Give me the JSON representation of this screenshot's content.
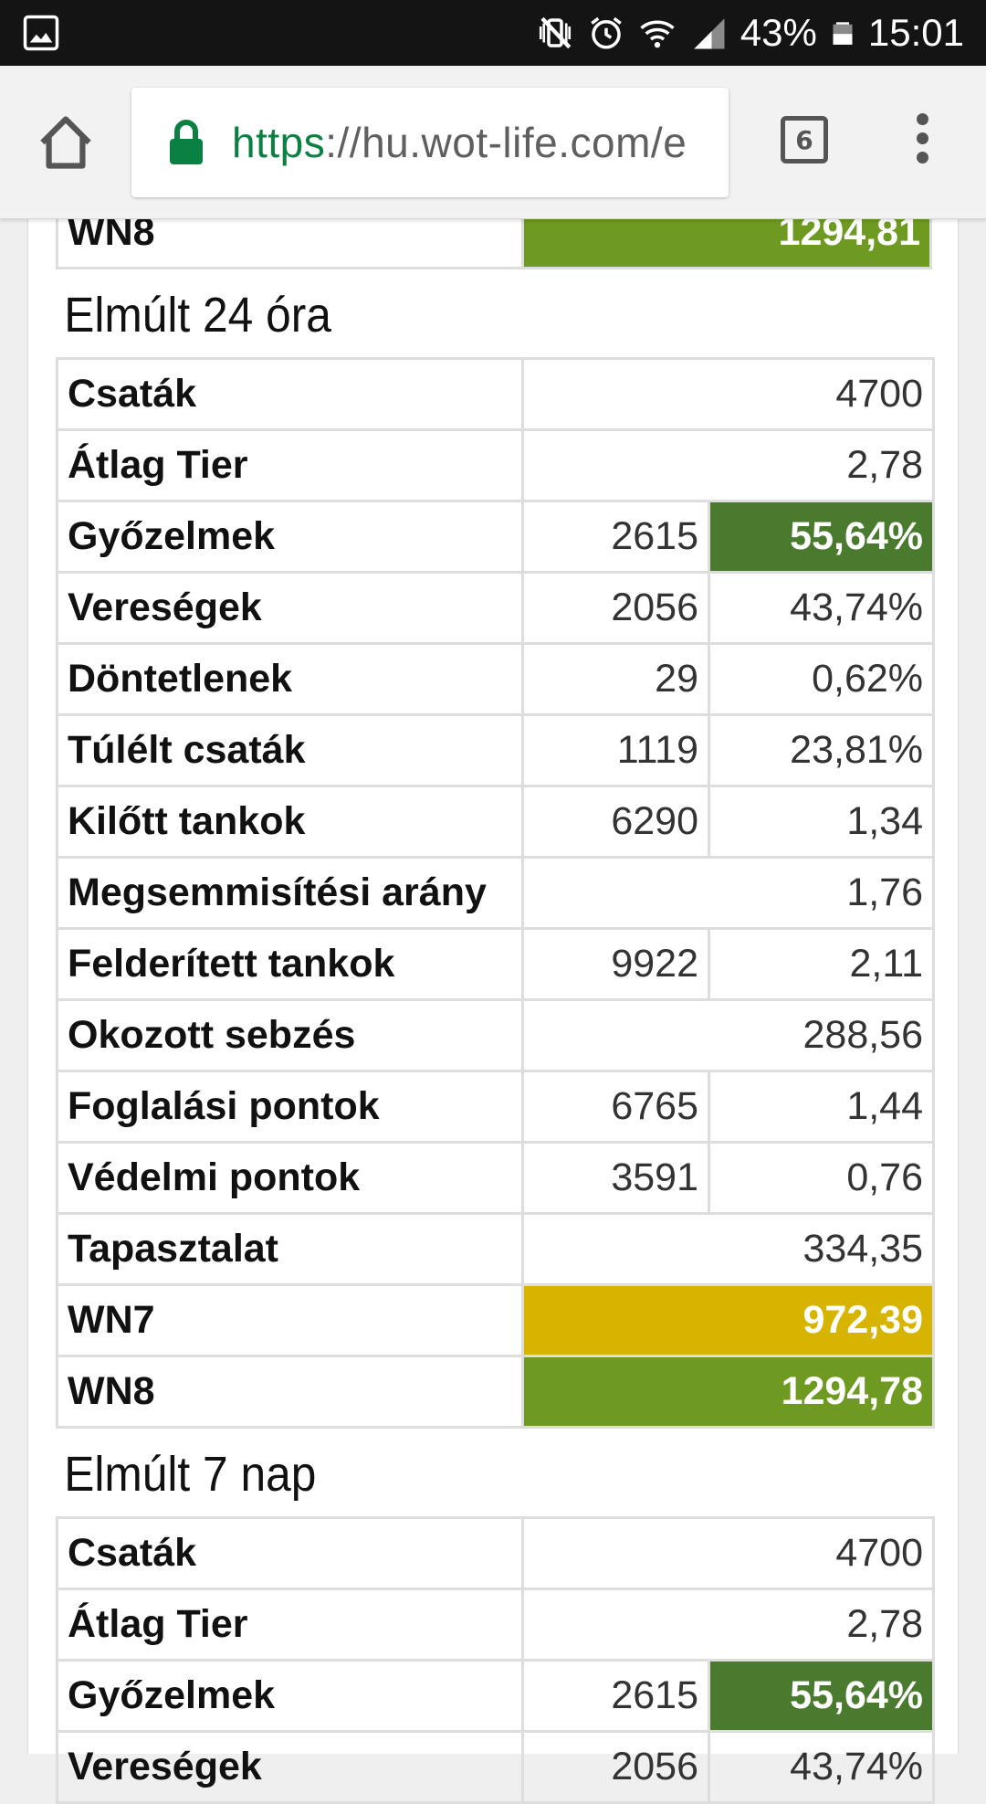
{
  "status_bar": {
    "battery": "43%",
    "time": "15:01",
    "icons": [
      "image-icon",
      "mute-vibrate-icon",
      "alarm-icon",
      "wifi-icon",
      "signal-icon",
      "battery-icon"
    ]
  },
  "browser": {
    "url_scheme": "https",
    "url_rest": "://hu.wot-life.com/e",
    "tab_count": "6"
  },
  "top_row": {
    "label": "WN8",
    "value": "1294,81"
  },
  "section_24h": {
    "title": "Elmúlt 24 óra",
    "rows": {
      "battles": {
        "label": "Csaták",
        "value": "4700"
      },
      "avg_tier": {
        "label": "Átlag Tier",
        "value": "2,78"
      },
      "wins": {
        "label": "Győzelmek",
        "count": "2615",
        "value": "55,64%"
      },
      "losses": {
        "label": "Vereségek",
        "count": "2056",
        "value": "43,74%"
      },
      "draws": {
        "label": "Döntetlenek",
        "count": "29",
        "value": "0,62%"
      },
      "survived": {
        "label": "Túlélt csaták",
        "count": "1119",
        "value": "23,81%"
      },
      "kills": {
        "label": "Kilőtt tankok",
        "count": "6290",
        "value": "1,34"
      },
      "kd_ratio": {
        "label": "Megsemmisítési arány",
        "value": "1,76"
      },
      "spotted": {
        "label": "Felderített tankok",
        "count": "9922",
        "value": "2,11"
      },
      "damage": {
        "label": "Okozott sebzés",
        "value": "288,56"
      },
      "capture": {
        "label": "Foglalási pontok",
        "count": "6765",
        "value": "1,44"
      },
      "defense": {
        "label": "Védelmi pontok",
        "count": "3591",
        "value": "0,76"
      },
      "xp": {
        "label": "Tapasztalat",
        "value": "334,35"
      },
      "wn7": {
        "label": "WN7",
        "value": "972,39"
      },
      "wn8": {
        "label": "WN8",
        "value": "1294,78"
      }
    }
  },
  "section_7d": {
    "title": "Elmúlt 7 nap",
    "rows": {
      "battles": {
        "label": "Csaták",
        "value": "4700"
      },
      "avg_tier": {
        "label": "Átlag Tier",
        "value": "2,78"
      },
      "wins": {
        "label": "Győzelmek",
        "count": "2615",
        "value": "55,64%"
      },
      "losses": {
        "label": "Vereségek",
        "count": "2056",
        "value": "43,74%"
      }
    }
  },
  "colors": {
    "wn8": "#6e9a22",
    "wn7": "#d6b400",
    "win_rate": "#4a7a2e",
    "url_scheme": "#0b8043"
  }
}
